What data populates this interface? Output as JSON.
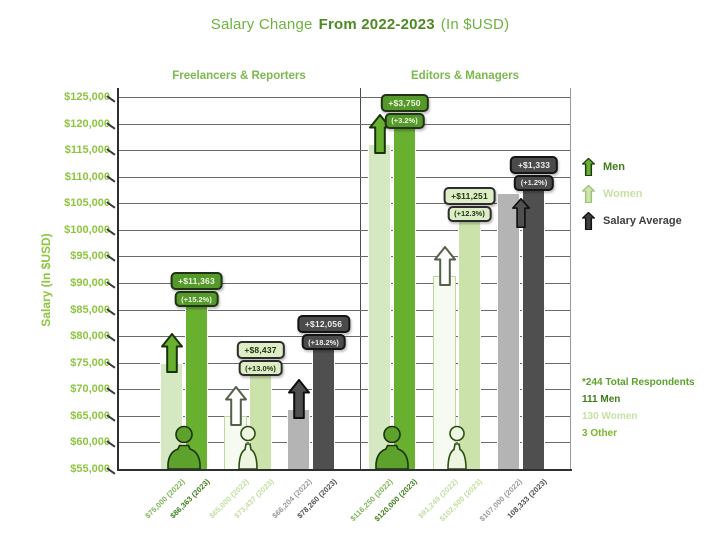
{
  "title": {
    "part1": "Salary Change",
    "part2": "From 2022-2023",
    "part3": "(In $USD)"
  },
  "chart_data": {
    "type": "bar",
    "title": "Salary Change From 2022-2023 (In $USD)",
    "ylabel": "Salary (In $USD)",
    "ylim": [
      55000,
      125000
    ],
    "ytick_step": 5000,
    "yticks": [
      "$55,000",
      "$60,000",
      "$65,000",
      "$70,000",
      "$75,000",
      "$80,000",
      "$85,000",
      "$90,000",
      "$95,000",
      "$100,000",
      "$105,000",
      "$110,000",
      "$115,000",
      "$120,000",
      "$125,000"
    ],
    "years": [
      "2022",
      "2023"
    ],
    "grid": true,
    "groups": [
      {
        "label": "Freelancers & Reporters",
        "series": [
          {
            "name": "Men",
            "values": {
              "2022": 75000,
              "2023": 86363
            },
            "change": "+$11,363",
            "change_pct": "(+15.2%)",
            "bar_labels": {
              "2022": "$75,000 (2022)",
              "2023": "$86,363 (2023)"
            }
          },
          {
            "name": "Women",
            "values": {
              "2022": 65000,
              "2023": 73437
            },
            "change": "+$8,437",
            "change_pct": "(+13.0%)",
            "bar_labels": {
              "2022": "$65,000 (2022)",
              "2023": "$73,437 (2023)"
            }
          },
          {
            "name": "Salary Average",
            "values": {
              "2022": 66204,
              "2023": 78260
            },
            "change": "+$12,056",
            "change_pct": "(+18.2%)",
            "bar_labels": {
              "2022": "$66,204 (2022)",
              "2023": "$78,260 (2023)"
            }
          }
        ]
      },
      {
        "label": "Editors & Managers",
        "series": [
          {
            "name": "Men",
            "values": {
              "2022": 116250,
              "2023": 120000
            },
            "change": "+$3,750",
            "change_pct": "(+3.2%)",
            "bar_labels": {
              "2022": "$116,250 (2022)",
              "2023": "$120,000 (2023)"
            }
          },
          {
            "name": "Women",
            "values": {
              "2022": 91249,
              "2023": 102500
            },
            "change": "+$11,251",
            "change_pct": "(+12.3%)",
            "bar_labels": {
              "2022": "$91,249 (2022)",
              "2023": "$102,500 (2023)"
            }
          },
          {
            "name": "Salary Average",
            "values": {
              "2022": 107000,
              "2023": 108333
            },
            "change": "+$1,333",
            "change_pct": "(+1.2%)",
            "bar_labels": {
              "2022": "$107,000 (2022)",
              "2023": "108,333 (2023)"
            }
          }
        ]
      }
    ],
    "legend": {
      "position": "right",
      "items": [
        {
          "label": "Men"
        },
        {
          "label": "Women"
        },
        {
          "label": "Salary Average"
        }
      ]
    }
  },
  "footnote": {
    "lines": [
      "*244 Total Respondents",
      "111 Men",
      "130 Women",
      "3 Other"
    ]
  },
  "colors": {
    "green_dark": "#4c8a22",
    "green": "#68b02f",
    "green_light": "#cbe3aa",
    "green_pale": "#d6e8c2",
    "gray_light": "#b4b4b4",
    "gray_dark": "#4f4f4f",
    "accent_green": "#76b82a"
  }
}
